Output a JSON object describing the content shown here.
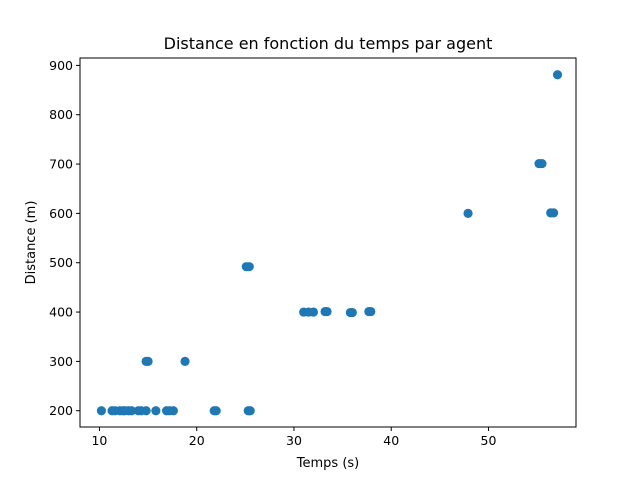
{
  "chart_data": {
    "type": "scatter",
    "title": "Distance en fonction du temps par agent",
    "xlabel": "Temps (s)",
    "ylabel": "Distance (m)",
    "xlim": [
      8,
      59
    ],
    "ylim": [
      167,
      915
    ],
    "xticks": [
      10,
      20,
      30,
      40,
      50
    ],
    "yticks": [
      200,
      300,
      400,
      500,
      600,
      700,
      800,
      900
    ],
    "grid": false,
    "legend": "none",
    "color": "#1f77b4",
    "points": [
      {
        "x": 10.2,
        "y": 200
      },
      {
        "x": 11.3,
        "y": 200
      },
      {
        "x": 11.6,
        "y": 200
      },
      {
        "x": 12.1,
        "y": 200
      },
      {
        "x": 12.4,
        "y": 200
      },
      {
        "x": 12.6,
        "y": 200
      },
      {
        "x": 13.0,
        "y": 200
      },
      {
        "x": 13.3,
        "y": 200
      },
      {
        "x": 14.0,
        "y": 200
      },
      {
        "x": 14.3,
        "y": 200
      },
      {
        "x": 14.8,
        "y": 200
      },
      {
        "x": 15.8,
        "y": 200
      },
      {
        "x": 16.9,
        "y": 200
      },
      {
        "x": 17.2,
        "y": 200
      },
      {
        "x": 17.6,
        "y": 200
      },
      {
        "x": 21.8,
        "y": 200
      },
      {
        "x": 22.0,
        "y": 200
      },
      {
        "x": 25.3,
        "y": 200
      },
      {
        "x": 25.5,
        "y": 200
      },
      {
        "x": 14.8,
        "y": 300
      },
      {
        "x": 15.0,
        "y": 300
      },
      {
        "x": 18.8,
        "y": 300
      },
      {
        "x": 25.1,
        "y": 492
      },
      {
        "x": 25.4,
        "y": 492
      },
      {
        "x": 31.0,
        "y": 400
      },
      {
        "x": 31.5,
        "y": 400
      },
      {
        "x": 32.0,
        "y": 400
      },
      {
        "x": 33.2,
        "y": 401
      },
      {
        "x": 33.4,
        "y": 401
      },
      {
        "x": 35.8,
        "y": 399
      },
      {
        "x": 36.0,
        "y": 399
      },
      {
        "x": 37.7,
        "y": 401
      },
      {
        "x": 37.9,
        "y": 401
      },
      {
        "x": 47.9,
        "y": 600
      },
      {
        "x": 55.2,
        "y": 701
      },
      {
        "x": 55.5,
        "y": 701
      },
      {
        "x": 56.4,
        "y": 601
      },
      {
        "x": 56.7,
        "y": 601
      },
      {
        "x": 57.1,
        "y": 881
      }
    ]
  }
}
